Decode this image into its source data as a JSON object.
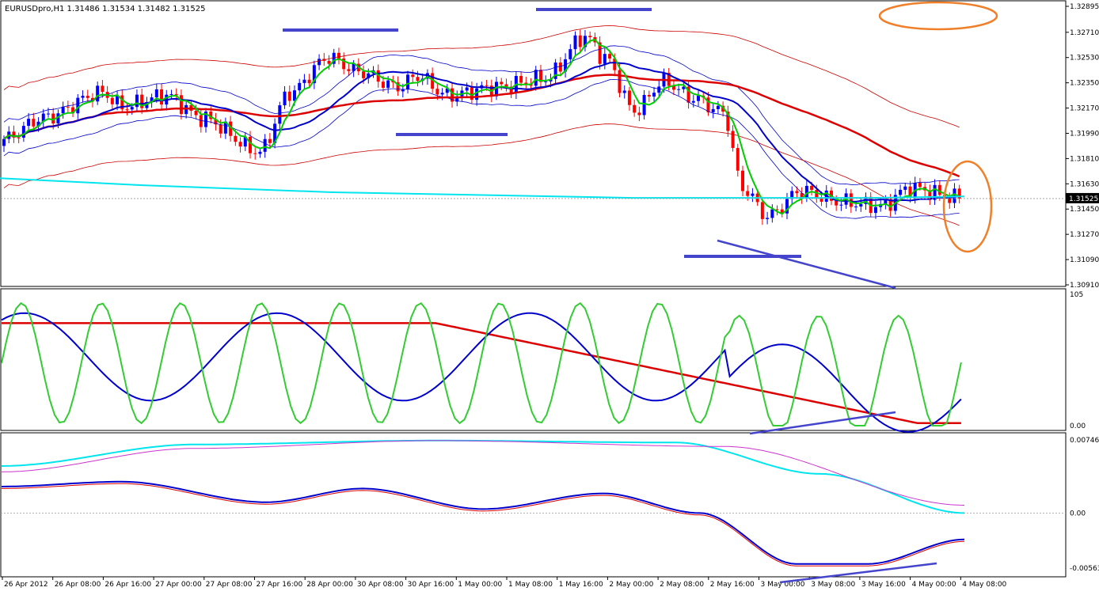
{
  "chart_data": [
    {
      "type": "candlestick",
      "title": "EURUSDpro,H1  1.31486 1.31534 1.31482 1.31525",
      "ylim": [
        1.3091,
        1.32895
      ],
      "y_ticks": [
        "1.32895",
        "1.32710",
        "1.32530",
        "1.32350",
        "1.32170",
        "1.31990",
        "1.31810",
        "1.31630",
        "1.31450",
        "1.31270",
        "1.31090",
        "1.30910"
      ],
      "current_price_label": "1.31525",
      "series": [
        {
          "name": "",
          "color": "#0000ff",
          "desc": "bullish candles"
        },
        {
          "name": "",
          "color": "#ff0000",
          "desc": "bearish candles"
        },
        {
          "name": "",
          "color": "#00cc00",
          "desc": "fast moving average"
        },
        {
          "name": "",
          "color": "#0000cc",
          "desc": "medium moving average"
        },
        {
          "name": "",
          "color": "#dd0000",
          "desc": "slow moving average"
        },
        {
          "name": "",
          "color": "#00e5ee",
          "desc": "long moving average"
        }
      ]
    },
    {
      "type": "line",
      "ylim": [
        0,
        105
      ],
      "y_ticks": [
        "105",
        "0.00"
      ],
      "series": [
        {
          "name": "",
          "color": "#33cc33"
        },
        {
          "name": "",
          "color": "#0000cc"
        },
        {
          "name": "",
          "color": "#dd0000"
        }
      ]
    },
    {
      "type": "line",
      "ylim": [
        -0.00563,
        0.007466
      ],
      "y_ticks": [
        "0.007466",
        "0.00",
        "-0.00563"
      ],
      "series": [
        {
          "name": "",
          "color": "#00e5ee"
        },
        {
          "name": "",
          "color": "#cc33cc"
        },
        {
          "name": "",
          "color": "#0000cc"
        },
        {
          "name": "",
          "color": "#dd0000"
        }
      ]
    }
  ],
  "x_labels": [
    "26 Apr 2012",
    "26 Apr 08:00",
    "26 Apr 16:00",
    "27 Apr 00:00",
    "27 Apr 08:00",
    "27 Apr 16:00",
    "28 Apr 00:00",
    "30 Apr 08:00",
    "30 Apr 16:00",
    "1 May 00:00",
    "1 May 08:00",
    "1 May 16:00",
    "2 May 00:00",
    "2 May 08:00",
    "2 May 16:00",
    "3 May 00:00",
    "3 May 08:00",
    "3 May 16:00",
    "4 May 00:00",
    "4 May 08:00"
  ],
  "colors": {
    "bull": "#0000ff",
    "bear": "#ff0000",
    "annotation": "#4444cc",
    "highlight": "#f07f2a",
    "axis": "#000000"
  }
}
